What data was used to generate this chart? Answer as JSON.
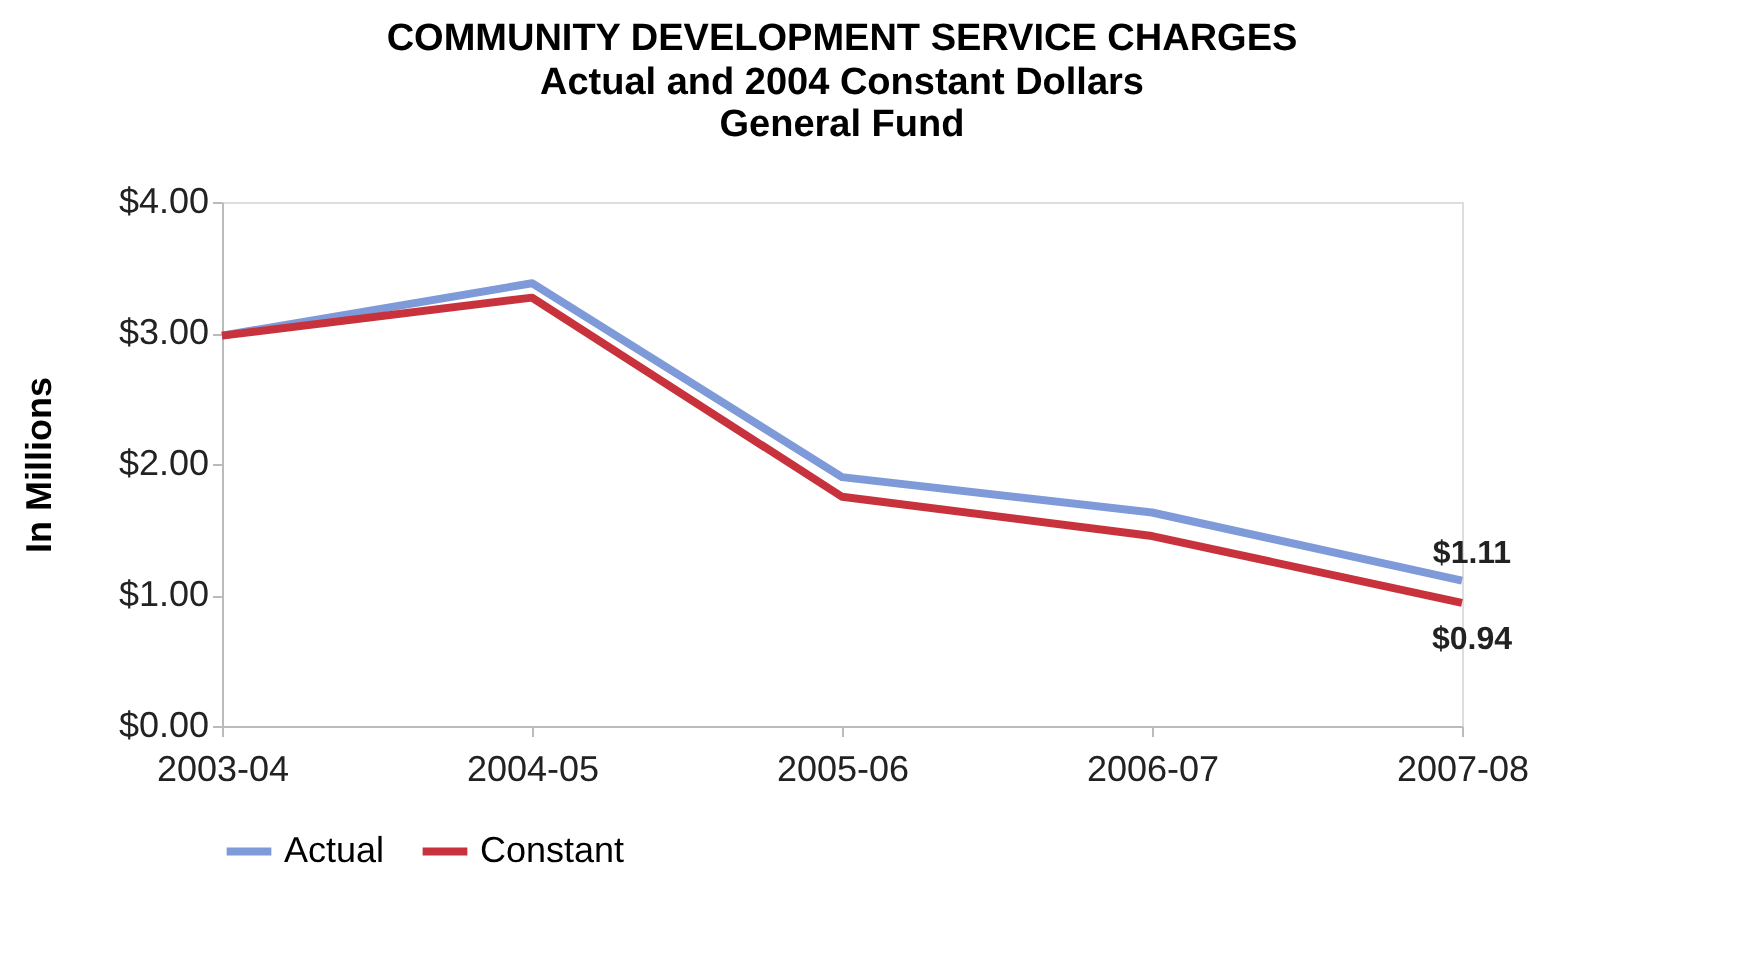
{
  "chart_data": {
    "type": "line",
    "title": "COMMUNITY DEVELOPMENT SERVICE CHARGES",
    "subtitle": "Actual and 2004 Constant Dollars\nGeneral Fund",
    "ylabel": "In Millions",
    "categories": [
      "2003-04",
      "2004-05",
      "2005-06",
      "2006-07",
      "2007-08"
    ],
    "series": [
      {
        "name": "Actual",
        "color": "#7f9ad8",
        "values": [
          2.98,
          3.38,
          1.9,
          1.63,
          1.11
        ],
        "value_labels": [
          null,
          null,
          null,
          null,
          "$1.11"
        ]
      },
      {
        "name": "Constant",
        "color": "#c8323c",
        "values": [
          2.98,
          3.27,
          1.75,
          1.45,
          0.94
        ],
        "value_labels": [
          null,
          null,
          null,
          null,
          "$0.94"
        ]
      }
    ],
    "ylim": [
      0,
      4
    ],
    "yticks": [
      {
        "value": 0,
        "label": "$0.00"
      },
      {
        "value": 1,
        "label": "$1.00"
      },
      {
        "value": 2,
        "label": "$2.00"
      },
      {
        "value": 3,
        "label": "$3.00"
      },
      {
        "value": 4,
        "label": "$4.00"
      }
    ],
    "grid": false,
    "legend": "bottom",
    "marker": "none",
    "line_style": "solid"
  }
}
